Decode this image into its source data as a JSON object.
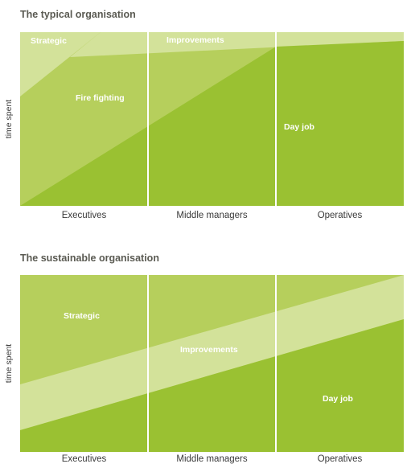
{
  "colors": {
    "lightest": "#d3e29a",
    "light": "#b6cf5c",
    "dark": "#9ac132",
    "title": "#5a5a52"
  },
  "diagrams": [
    {
      "title": "The typical organisation",
      "y_axis_label": "time spent",
      "columns": [
        "Executives",
        "Middle managers",
        "Operatives"
      ],
      "regions": [
        "Strategic",
        "Improvements",
        "Fire fighting",
        "Day job"
      ]
    },
    {
      "title": "The sustainable organisation",
      "y_axis_label": "time spent",
      "columns": [
        "Executives",
        "Middle managers",
        "Operatives"
      ],
      "regions": [
        "Strategic",
        "Improvements",
        "Day job"
      ]
    }
  ]
}
